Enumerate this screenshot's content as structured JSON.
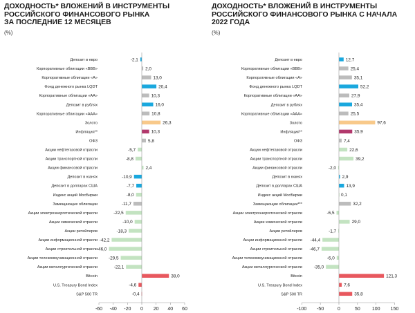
{
  "chart_data": [
    {
      "type": "bar",
      "orientation": "horizontal",
      "title": [
        "ДОХОДНОСТЬ* ВЛОЖЕНИЙ В ИНСТРУМЕНТЫ",
        "РОССИЙСКОГО ФИНАНСОВОГО РЫНКА",
        "ЗА ПОСЛЕДНИЕ 12 МЕСЯЦЕВ"
      ],
      "unit": "(%)",
      "xlim": [
        -60,
        60
      ],
      "xticks": [
        "-60",
        "-40",
        "-20",
        "0",
        "20",
        "40",
        "60"
      ],
      "grid": false,
      "categories": [
        "Депозит в евро",
        "Корпоративные облигации «ВВВ»",
        "Корпоративные облигации «А»",
        "Фонд денежного рынка LQDT",
        "Корпоративные облигации «АА»",
        "Депозит в рублях",
        "Корпоративные облигации «ААА»",
        "Золото",
        "Инфляция**",
        "ОФЗ",
        "Акции нефтегазовой отрасли",
        "Акции транспортной отрасли",
        "Акции финансовой отрасли",
        "Депозит в юанях",
        "Депозит в долларах США",
        "Индекс акций МосБиржи",
        "Замещающие облигации",
        "Акции электроэнергетической отрасли",
        "Акции химической отрасли",
        "Акции ретейлеров",
        "Акции информационной отрасли",
        "Акции строительной отрасли",
        "Акции телекоммуникационной отрасли",
        "Акции металлургической отрасли",
        "Bitcoin",
        "U.S. Treasury Bond Index",
        "S&P 500 TR"
      ],
      "values": [
        -2.1,
        2.0,
        13.0,
        20.4,
        10.3,
        16.0,
        10.8,
        26.3,
        10.3,
        5.8,
        -5.7,
        -8.8,
        2.4,
        -10.9,
        -7.7,
        -8.0,
        -11.7,
        -22.5,
        -10.0,
        -18.3,
        -42.2,
        -46.0,
        -29.5,
        -22.1,
        38.0,
        -4.6,
        -0.4
      ],
      "value_labels": [
        "-2,1",
        "2,0",
        "13,0",
        "20,4",
        "10,3",
        "16,0",
        "10,8",
        "26,3",
        "10,3",
        "5,8",
        "-5,7",
        "-8,8",
        "2,4",
        "-10,9",
        "-7,7",
        "-8,0",
        "-11,7",
        "-22,5",
        "-10,0",
        "-18,3",
        "-42,2",
        "-46,0",
        "-29,5",
        "-22,1",
        "38,0",
        "-4,6",
        "-0,4"
      ]
    },
    {
      "type": "bar",
      "orientation": "horizontal",
      "title": [
        "ДОХОДНОСТЬ* ВЛОЖЕНИЙ В ИНСТРУМЕНТЫ",
        "РОССИЙСКОГО ФИНАНСОВОГО РЫНКА С НАЧАЛА",
        "2022 ГОДА"
      ],
      "unit": "(%)",
      "xlim": [
        -100,
        150
      ],
      "xticks": [
        "-100",
        "-50",
        "0",
        "50",
        "100",
        "150"
      ],
      "grid": false,
      "categories": [
        "Депозит в евро",
        "Корпоративные облигации «ВВВ»",
        "Корпоративные облигации «А»",
        "Фонд денежного рынка LQDT",
        "Корпоративные облигации «АА»",
        "Депозит в рублях",
        "Корпоративные облигации «ААА»",
        "Золото",
        "Инфляция**",
        "ОФЗ",
        "Акции нефтегазовой отрасли",
        "Акции транспортной отрасли",
        "Акции финансовой отрасли",
        "Депозит в юанях",
        "Депозит в долларах США",
        "Индекс акций МосБиржи",
        "Замещающие облигации***",
        "Акции электроэнергетической отрасли",
        "Акции химической отрасли",
        "Акции ретейлеров",
        "Акции информационной отрасли",
        "Акции строительной отрасли",
        "Акции телекоммуникационной отрасли",
        "Акции металлургической отрасли",
        "Bitcoin",
        "U.S. Treasury Bond Index",
        "S&P 500 TR"
      ],
      "values": [
        12.7,
        25.4,
        35.1,
        52.2,
        27.9,
        35.4,
        25.5,
        97.6,
        35.9,
        7.4,
        22.6,
        39.2,
        -2.0,
        2.9,
        13.9,
        0.1,
        32.2,
        -6.5,
        29.0,
        -1.7,
        -44.4,
        -46.7,
        -6.0,
        -35.0,
        121.3,
        7.6,
        35.8
      ],
      "value_labels": [
        "12,7",
        "25,4",
        "35,1",
        "52,2",
        "27,9",
        "35,4",
        "25,5",
        "97,6",
        "35,9",
        "7,4",
        "22,6",
        "39,2",
        "-2,0",
        "2,9",
        "13,9",
        "0,1",
        "32,2",
        "-6,5",
        "29,0",
        "-1,7",
        "-44,4",
        "-46,7",
        "-6,0",
        "-35,0",
        "121,3",
        "7,6",
        "35,8"
      ]
    }
  ],
  "colors": {
    "blue": "#1aa8de",
    "gray": "#bcbcbc",
    "gold": "#f8c98a",
    "magenta": "#b2386c",
    "green": "#c3e3c1",
    "red": "#e8585e"
  },
  "bar_color_keys": [
    "blue",
    "gray",
    "gray",
    "blue",
    "gray",
    "blue",
    "gray",
    "gold",
    "magenta",
    "gray",
    "green",
    "green",
    "green",
    "blue",
    "blue",
    "green",
    "gray",
    "green",
    "green",
    "green",
    "green",
    "green",
    "green",
    "green",
    "red",
    "red",
    "red"
  ]
}
